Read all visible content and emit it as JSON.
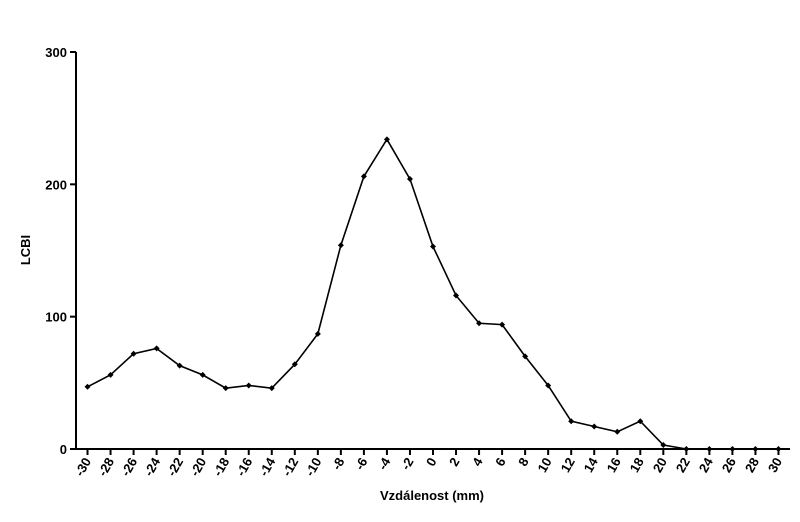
{
  "chart_data": {
    "type": "line",
    "x": [
      -30,
      -28,
      -26,
      -24,
      -22,
      -20,
      -18,
      -16,
      -14,
      -12,
      -10,
      -8,
      -6,
      -4,
      -2,
      0,
      2,
      4,
      6,
      8,
      10,
      12,
      14,
      16,
      18,
      20,
      22,
      24,
      26,
      28,
      30
    ],
    "values": [
      47,
      56,
      72,
      76,
      63,
      56,
      46,
      48,
      46,
      64,
      87,
      154,
      206,
      234,
      204,
      153,
      116,
      95,
      94,
      70,
      48,
      21,
      17,
      13,
      21,
      3,
      0,
      0,
      0,
      0,
      0
    ],
    "color": "#000000",
    "xlabel": "Vzdálenost (mm)",
    "ylabel": "LCBI",
    "xlim": [
      -31,
      31
    ],
    "ylim": [
      0,
      300
    ],
    "xticks": [
      -30,
      -28,
      -26,
      -24,
      -22,
      -20,
      -18,
      -16,
      -14,
      -12,
      -10,
      -8,
      -6,
      -4,
      -2,
      0,
      2,
      4,
      6,
      8,
      10,
      12,
      14,
      16,
      18,
      20,
      22,
      24,
      26,
      28,
      30
    ],
    "yticks": [
      0,
      100,
      200,
      300
    ]
  }
}
